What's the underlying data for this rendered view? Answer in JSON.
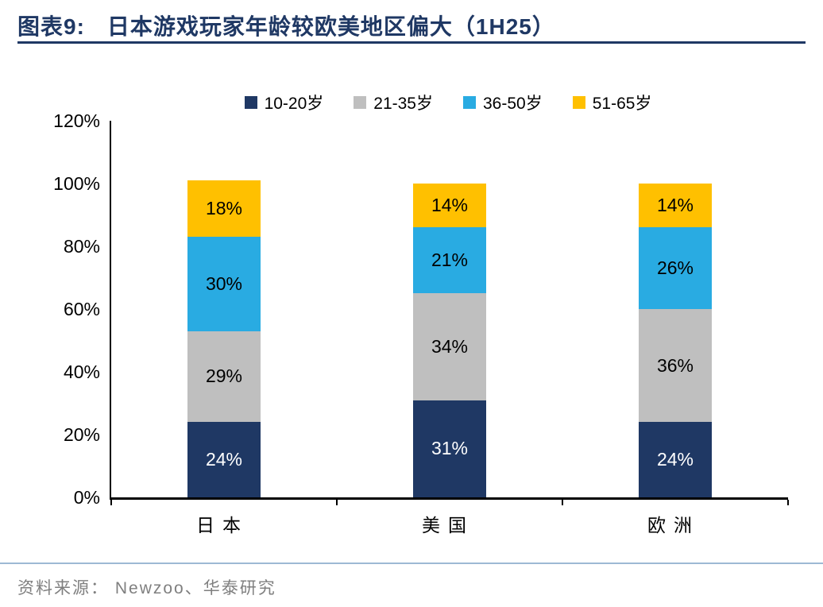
{
  "header": {
    "figure_label": "图表9:",
    "title": "日本游戏玩家年龄较欧美地区偏大（1H25）"
  },
  "footer": {
    "source_label": "资料来源：",
    "source_text": "Newzoo、华泰研究"
  },
  "theme": {
    "title_color": "#1F3864",
    "rule_color": "#1F3864",
    "footer_rule_color": "#9DB9D4",
    "source_color": "#7F7F7F",
    "axis_color": "#000000"
  },
  "chart_data": {
    "type": "bar",
    "stacked": true,
    "title": "日本游戏玩家年龄较欧美地区偏大（1H25）",
    "categories": [
      "日本",
      "美国",
      "欧洲"
    ],
    "series": [
      {
        "name": "10-20岁",
        "color": "#1F3864",
        "text_color": "#FFFFFF",
        "values": [
          24,
          31,
          24
        ]
      },
      {
        "name": "21-35岁",
        "color": "#BFBFBF",
        "text_color": "#000000",
        "values": [
          29,
          34,
          36
        ]
      },
      {
        "name": "36-50岁",
        "color": "#29ABE2",
        "text_color": "#000000",
        "values": [
          30,
          21,
          26
        ]
      },
      {
        "name": "51-65岁",
        "color": "#FFC000",
        "text_color": "#000000",
        "values": [
          18,
          14,
          14
        ]
      }
    ],
    "value_suffix": "%",
    "xlabel": "",
    "ylabel": "",
    "ylim": [
      0,
      120
    ],
    "ytick_step": 20,
    "ytick_suffix": "%",
    "legend_position": "top",
    "grid": false
  }
}
